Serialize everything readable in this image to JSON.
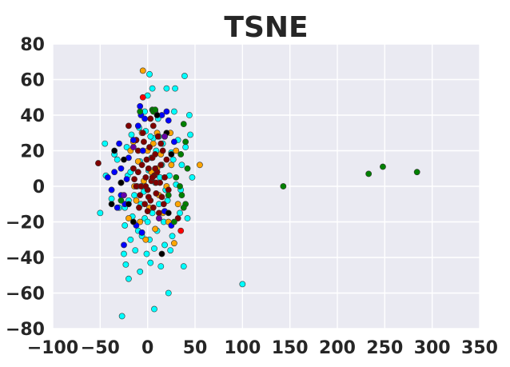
{
  "chart_data": {
    "type": "scatter",
    "title": "TSNE",
    "xlabel": "",
    "ylabel": "",
    "xlim": [
      -100,
      350
    ],
    "ylim": [
      -80,
      80
    ],
    "x_ticks": [
      -100,
      -50,
      0,
      50,
      100,
      150,
      200,
      250,
      300,
      350
    ],
    "y_ticks": [
      -80,
      -60,
      -40,
      -20,
      0,
      20,
      40,
      60,
      80
    ],
    "grid": true,
    "background": "#eaeaf2",
    "series": [
      {
        "color": "#00ffff",
        "points": [
          [
            -50,
            -15
          ],
          [
            -45,
            24
          ],
          [
            -44,
            6
          ],
          [
            -38,
            -7
          ],
          [
            -35,
            18
          ],
          [
            -32,
            15
          ],
          [
            -30,
            -12
          ],
          [
            -28,
            2
          ],
          [
            -27,
            -73
          ],
          [
            -25,
            -38
          ],
          [
            -24,
            -22
          ],
          [
            -23,
            -44
          ],
          [
            -22,
            22
          ],
          [
            -21,
            6
          ],
          [
            -20,
            -52
          ],
          [
            -18,
            -30
          ],
          [
            -17,
            29
          ],
          [
            -16,
            -17
          ],
          [
            -15,
            10
          ],
          [
            -14,
            -5
          ],
          [
            -13,
            -36
          ],
          [
            -12,
            26
          ],
          [
            -11,
            0
          ],
          [
            -10,
            -25
          ],
          [
            -9,
            33
          ],
          [
            -8,
            14
          ],
          [
            -7,
            -10
          ],
          [
            -6,
            -28
          ],
          [
            -5,
            20
          ],
          [
            -4,
            -3
          ],
          [
            -3,
            -18
          ],
          [
            -2,
            31
          ],
          [
            -1,
            -38
          ],
          [
            0,
            51
          ],
          [
            0,
            -20
          ],
          [
            1,
            9
          ],
          [
            2,
            63
          ],
          [
            2,
            -30
          ],
          [
            3,
            -43
          ],
          [
            4,
            16
          ],
          [
            5,
            55
          ],
          [
            5,
            -15
          ],
          [
            6,
            27
          ],
          [
            7,
            -69
          ],
          [
            7,
            -35
          ],
          [
            8,
            2
          ],
          [
            9,
            20
          ],
          [
            10,
            -25
          ],
          [
            11,
            38
          ],
          [
            12,
            -10
          ],
          [
            13,
            5
          ],
          [
            14,
            -45
          ],
          [
            15,
            12
          ],
          [
            16,
            24
          ],
          [
            17,
            -20
          ],
          [
            18,
            -33
          ],
          [
            20,
            55
          ],
          [
            21,
            -8
          ],
          [
            22,
            -60
          ],
          [
            23,
            6
          ],
          [
            25,
            19
          ],
          [
            26,
            -28
          ],
          [
            28,
            42
          ],
          [
            30,
            1
          ],
          [
            32,
            26
          ],
          [
            34,
            -15
          ],
          [
            36,
            12
          ],
          [
            38,
            -45
          ],
          [
            39,
            62
          ],
          [
            40,
            22
          ],
          [
            42,
            -18
          ],
          [
            44,
            40
          ],
          [
            45,
            29
          ],
          [
            47,
            5
          ],
          [
            29,
            55
          ],
          [
            -6,
            -26
          ],
          [
            19,
            -2
          ],
          [
            -24,
            -12
          ],
          [
            12,
            28
          ],
          [
            -8,
            -48
          ],
          [
            100,
            -55
          ],
          [
            3,
            28
          ],
          [
            -18,
            8
          ],
          [
            24,
            -36
          ],
          [
            -3,
            42
          ],
          [
            27,
            15
          ],
          [
            -20,
            -8
          ],
          [
            35,
            -2
          ]
        ]
      },
      {
        "color": "#ffa500",
        "points": [
          [
            -5,
            65
          ],
          [
            -15,
            25
          ],
          [
            -12,
            -8
          ],
          [
            -10,
            14
          ],
          [
            -8,
            -20
          ],
          [
            -6,
            30
          ],
          [
            -4,
            3
          ],
          [
            -2,
            -30
          ],
          [
            0,
            20
          ],
          [
            2,
            -12
          ],
          [
            4,
            8
          ],
          [
            6,
            24
          ],
          [
            8,
            -24
          ],
          [
            10,
            10
          ],
          [
            12,
            -5
          ],
          [
            14,
            18
          ],
          [
            16,
            -15
          ],
          [
            18,
            28
          ],
          [
            20,
            0
          ],
          [
            22,
            -20
          ],
          [
            25,
            12
          ],
          [
            28,
            -32
          ],
          [
            30,
            20
          ],
          [
            -20,
            -18
          ],
          [
            55,
            12
          ],
          [
            -18,
            20
          ],
          [
            32,
            -10
          ],
          [
            24,
            30
          ],
          [
            -14,
            0
          ],
          [
            10,
            30
          ]
        ]
      },
      {
        "color": "#800000",
        "points": [
          [
            -52,
            13
          ],
          [
            -20,
            34
          ],
          [
            -15,
            10
          ],
          [
            -12,
            0
          ],
          [
            -10,
            20
          ],
          [
            -8,
            -5
          ],
          [
            -6,
            12
          ],
          [
            -4,
            25
          ],
          [
            -3,
            -10
          ],
          [
            -2,
            5
          ],
          [
            -1,
            15
          ],
          [
            0,
            -2
          ],
          [
            1,
            10
          ],
          [
            2,
            22
          ],
          [
            3,
            -8
          ],
          [
            4,
            3
          ],
          [
            5,
            16
          ],
          [
            6,
            -12
          ],
          [
            7,
            6
          ],
          [
            8,
            18
          ],
          [
            9,
            -4
          ],
          [
            10,
            8
          ],
          [
            11,
            28
          ],
          [
            12,
            -15
          ],
          [
            13,
            2
          ],
          [
            14,
            12
          ],
          [
            15,
            -6
          ],
          [
            16,
            20
          ],
          [
            18,
            5
          ],
          [
            20,
            15
          ],
          [
            22,
            -2
          ],
          [
            -5,
            30
          ],
          [
            0,
            -14
          ],
          [
            6,
            34
          ],
          [
            -9,
            -12
          ],
          [
            17,
            -10
          ],
          [
            3,
            38
          ],
          [
            -12,
            26
          ],
          [
            9,
            2
          ],
          [
            -7,
            0
          ],
          [
            32,
            -18
          ],
          [
            -2,
            0
          ],
          [
            5,
            5
          ],
          [
            -14,
            4
          ],
          [
            14,
            24
          ],
          [
            1,
            -6
          ],
          [
            -10,
            8
          ],
          [
            8,
            10
          ]
        ]
      },
      {
        "color": "#0000ff",
        "points": [
          [
            -42,
            5
          ],
          [
            -38,
            -2
          ],
          [
            -32,
            -12
          ],
          [
            -30,
            24
          ],
          [
            -28,
            10
          ],
          [
            -28,
            -5
          ],
          [
            -25,
            -33
          ],
          [
            -22,
            4
          ],
          [
            -15,
            26
          ],
          [
            -10,
            34
          ],
          [
            -8,
            45
          ],
          [
            -7,
            40
          ],
          [
            -5,
            20
          ],
          [
            -3,
            38
          ],
          [
            15,
            40
          ],
          [
            22,
            37
          ],
          [
            -20,
            16
          ],
          [
            -12,
            -22
          ],
          [
            18,
            -14
          ],
          [
            25,
            -22
          ],
          [
            28,
            25
          ],
          [
            -35,
            8
          ],
          [
            -24,
            -10
          ],
          [
            8,
            42
          ],
          [
            20,
            42
          ],
          [
            -6,
            -26
          ]
        ]
      },
      {
        "color": "#008000",
        "points": [
          [
            5,
            43
          ],
          [
            6,
            42
          ],
          [
            8,
            43
          ],
          [
            38,
            35
          ],
          [
            40,
            25
          ],
          [
            36,
            -5
          ],
          [
            40,
            -10
          ],
          [
            42,
            10
          ],
          [
            35,
            18
          ],
          [
            30,
            5
          ],
          [
            -28,
            -8
          ],
          [
            -8,
            42
          ],
          [
            28,
            -20
          ],
          [
            38,
            -12
          ],
          [
            34,
            0
          ],
          [
            22,
            -5
          ],
          [
            143,
            0
          ],
          [
            233,
            7
          ],
          [
            248,
            11
          ],
          [
            284,
            8
          ]
        ]
      },
      {
        "color": "#000000",
        "points": [
          [
            -35,
            20
          ],
          [
            -28,
            2
          ],
          [
            -20,
            -10
          ],
          [
            -15,
            -20
          ],
          [
            15,
            -38
          ],
          [
            20,
            30
          ],
          [
            22,
            -15
          ],
          [
            -38,
            -10
          ],
          [
            25,
            18
          ],
          [
            10,
            40
          ],
          [
            -25,
            15
          ]
        ]
      },
      {
        "color": "#ff0000",
        "points": [
          [
            -5,
            50
          ],
          [
            35,
            -25
          ]
        ]
      },
      {
        "color": "#6600aa",
        "points": [
          [
            -15,
            22
          ],
          [
            -25,
            -5
          ],
          [
            18,
            28
          ],
          [
            12,
            -18
          ]
        ]
      }
    ]
  }
}
